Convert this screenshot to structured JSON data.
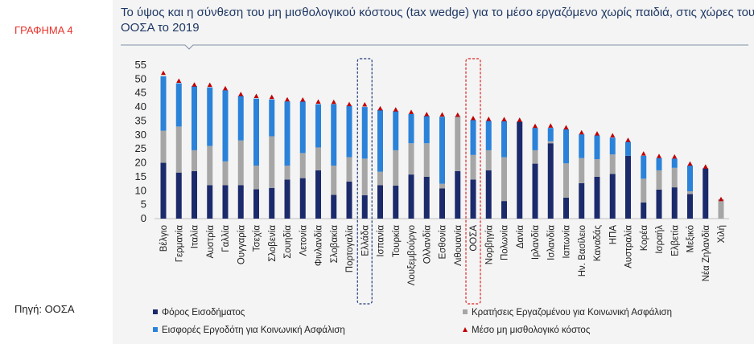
{
  "page": {
    "label": "ΓΡΑΦΗΜΑ 4",
    "source": "Πηγή: ΟΟΣΑ"
  },
  "chart_data": {
    "type": "bar",
    "stacked": true,
    "title": "Το ύψος και η σύνθεση του μη μισθολογικού κόστους (tax wedge) για το μέσο εργαζόμενο χωρίς παιδιά, στις χώρες του ΟΟΣΑ το 2019",
    "categories": [
      "Βέλγιο",
      "Γερμανία",
      "Ιταλία",
      "Αυστρία",
      "Γαλλία",
      "Ουγγαρία",
      "Τσεχία",
      "Σλοβενία",
      "Σουηδία",
      "Λετονία",
      "Φινλανδία",
      "Σλοβακία",
      "Πορτογαλία",
      "Ελλάδα",
      "Ισπανία",
      "Τουρκία",
      "Λουξεμβούργο",
      "Ολλανδία",
      "Εσθονία",
      "Λιθουανία",
      "ΟΟΣΑ",
      "Νορβηγία",
      "Πολωνία",
      "Δανία",
      "Ιρλανδία",
      "Ισλανδία",
      "Ιαπωνία",
      "Ην. Βασίλειο",
      "Καναδάς",
      "ΗΠΑ",
      "Αυστραλία",
      "Κορέα",
      "Ισραήλ",
      "Ελβετία",
      "Μεξικό",
      "Νέα Ζηλανδία",
      "Χιλή"
    ],
    "series": [
      {
        "name": "Φόρος Εισοδήματος",
        "color": "#1b2a6b",
        "values": [
          20,
          16.5,
          17,
          12,
          12,
          12,
          10.5,
          11,
          14,
          14.5,
          17.3,
          8.5,
          13.3,
          8.4,
          12,
          11.8,
          15.8,
          15,
          10.8,
          17,
          14,
          17.3,
          6.3,
          34.7,
          19.7,
          27,
          7.5,
          12.7,
          15,
          16,
          22.5,
          5.8,
          10.4,
          11.2,
          8.8,
          18,
          0
        ]
      },
      {
        "name": "Κρατήσεις Εργαζομένου για Κοινωνική Ασφάλιση",
        "color": "#a6a6a6",
        "values": [
          11.5,
          16.5,
          7.5,
          14,
          8.5,
          16,
          8.5,
          18.5,
          5,
          9,
          8.2,
          10.5,
          8.7,
          13.1,
          4.8,
          12.7,
          11.2,
          12,
          1.7,
          19.5,
          8.8,
          7.2,
          15.7,
          0,
          4.8,
          0.7,
          12.3,
          9,
          6.3,
          7,
          0,
          8.5,
          6.9,
          7,
          1,
          0,
          7
        ]
      },
      {
        "name": "Εισφορές Εργοδότη για Κοινωνική Ασφάλιση",
        "color": "#2b82d9",
        "values": [
          19.5,
          15.5,
          23,
          21,
          25.5,
          16,
          24,
          13.2,
          23,
          18.5,
          15.5,
          22,
          18.5,
          18.5,
          22.2,
          14,
          10.5,
          9.8,
          24,
          0.2,
          12.5,
          10.5,
          13,
          0,
          8,
          4.8,
          12.2,
          8.5,
          8.5,
          6,
          5,
          8.2,
          4.4,
          3.3,
          9.2,
          0,
          0
        ]
      },
      {
        "name": "Μέσο μη μισθολογικό κόστος",
        "color": "#c00000",
        "type": "marker",
        "values": [
          52.2,
          49.4,
          48,
          47.9,
          46.7,
          44.6,
          43.9,
          43.6,
          42.7,
          42.6,
          41.9,
          41.8,
          41,
          40.9,
          39.5,
          39.1,
          38.2,
          37.4,
          37.3,
          37.2,
          36,
          35.7,
          35.6,
          35.4,
          33.2,
          33.3,
          32.7,
          30.9,
          30.5,
          29.8,
          28.2,
          23.3,
          22.4,
          22.2,
          19.7,
          18.6,
          7
        ]
      }
    ],
    "ylim": [
      0,
      55
    ],
    "yticks": [
      0,
      5,
      10,
      15,
      20,
      25,
      30,
      35,
      40,
      45,
      50,
      55
    ],
    "grid": false
  }
}
